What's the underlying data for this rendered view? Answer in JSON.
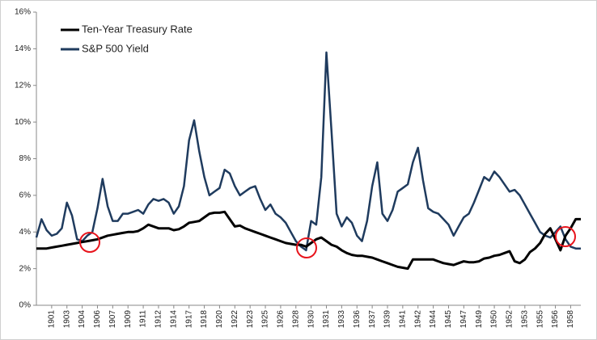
{
  "chart_data": {
    "type": "line",
    "categories": [
      null,
      null,
      null,
      "1901",
      null,
      null,
      "1903",
      null,
      null,
      "1904",
      null,
      null,
      "1906",
      null,
      null,
      "1907",
      null,
      null,
      "1909",
      null,
      null,
      "1911",
      null,
      null,
      "1912",
      null,
      null,
      "1914",
      null,
      null,
      "1917",
      null,
      null,
      "1918",
      null,
      null,
      "1920",
      null,
      null,
      "1922",
      null,
      null,
      "1923",
      null,
      null,
      "1925",
      null,
      null,
      "1926",
      null,
      null,
      "1928",
      null,
      null,
      "1930",
      null,
      null,
      "1931",
      null,
      null,
      "1933",
      null,
      null,
      "1936",
      null,
      null,
      "1937",
      null,
      null,
      "1939",
      null,
      null,
      "1941",
      null,
      null,
      "1942",
      null,
      null,
      "1944",
      null,
      null,
      "1945",
      null,
      null,
      "1947",
      null,
      null,
      "1949",
      null,
      null,
      "1950",
      null,
      null,
      "1952",
      null,
      null,
      "1953",
      null,
      null,
      "1955",
      null,
      null,
      "1956",
      null,
      null,
      "1958",
      null,
      null
    ],
    "series": [
      {
        "name": "Ten-Year Treasury Rate",
        "color": "#000000",
        "values": [
          3.1,
          3.1,
          3.1,
          3.15,
          3.2,
          3.25,
          3.3,
          3.35,
          3.4,
          3.45,
          3.5,
          3.55,
          3.6,
          3.7,
          3.8,
          3.85,
          3.9,
          3.95,
          4.0,
          4.0,
          4.05,
          4.2,
          4.4,
          4.3,
          4.2,
          4.2,
          4.2,
          4.1,
          4.15,
          4.3,
          4.5,
          4.55,
          4.6,
          4.8,
          5.0,
          5.05,
          5.05,
          5.1,
          4.7,
          4.3,
          4.35,
          4.2,
          4.1,
          4.0,
          3.9,
          3.8,
          3.7,
          3.6,
          3.5,
          3.4,
          3.35,
          3.3,
          3.3,
          3.2,
          3.4,
          3.6,
          3.7,
          3.5,
          3.3,
          3.2,
          3.0,
          2.85,
          2.75,
          2.7,
          2.7,
          2.65,
          2.6,
          2.5,
          2.4,
          2.3,
          2.2,
          2.1,
          2.05,
          2.0,
          2.5,
          2.5,
          2.5,
          2.5,
          2.5,
          2.4,
          2.3,
          2.25,
          2.2,
          2.3,
          2.4,
          2.35,
          2.35,
          2.4,
          2.55,
          2.6,
          2.7,
          2.75,
          2.85,
          2.95,
          2.4,
          2.3,
          2.5,
          2.9,
          3.1,
          3.4,
          3.9,
          4.2,
          3.6,
          3.0,
          3.8,
          4.2,
          4.7,
          4.7
        ]
      },
      {
        "name": "S&P 500 Yield",
        "color": "#1f3b5e",
        "values": [
          3.7,
          4.7,
          4.1,
          3.8,
          3.9,
          4.2,
          5.6,
          4.9,
          3.6,
          3.5,
          3.8,
          4.0,
          5.3,
          6.9,
          5.4,
          4.6,
          4.6,
          5.0,
          5.0,
          5.1,
          5.2,
          5.0,
          5.5,
          5.8,
          5.7,
          5.8,
          5.6,
          5.0,
          5.4,
          6.5,
          9.0,
          10.1,
          8.4,
          7.0,
          6.0,
          6.2,
          6.4,
          7.4,
          7.2,
          6.5,
          6.0,
          6.2,
          6.4,
          6.5,
          5.8,
          5.2,
          5.5,
          5.0,
          4.8,
          4.5,
          4.0,
          3.5,
          3.2,
          3.0,
          4.6,
          4.4,
          7.0,
          13.8,
          9.5,
          5.0,
          4.3,
          4.8,
          4.5,
          3.8,
          3.5,
          4.6,
          6.5,
          7.8,
          5.0,
          4.6,
          5.2,
          6.2,
          6.4,
          6.6,
          7.8,
          8.6,
          6.8,
          5.3,
          5.1,
          5.0,
          4.7,
          4.4,
          3.8,
          4.3,
          4.8,
          5.0,
          5.6,
          6.3,
          7.0,
          6.8,
          7.3,
          7.0,
          6.6,
          6.2,
          6.3,
          6.0,
          5.5,
          5.0,
          4.5,
          4.0,
          3.8,
          3.7,
          4.0,
          4.3,
          3.6,
          3.2,
          3.1,
          3.1
        ]
      }
    ],
    "ylim": [
      0,
      16
    ],
    "yticks": [
      {
        "value": 0,
        "label": "0%"
      },
      {
        "value": 2,
        "label": "2%"
      },
      {
        "value": 4,
        "label": "4%"
      },
      {
        "value": 6,
        "label": "6%"
      },
      {
        "value": 8,
        "label": "8%"
      },
      {
        "value": 10,
        "label": "10%"
      },
      {
        "value": 12,
        "label": "12%"
      },
      {
        "value": 14,
        "label": "14%"
      },
      {
        "value": 16,
        "label": "16%"
      }
    ],
    "legend": "upper left"
  }
}
